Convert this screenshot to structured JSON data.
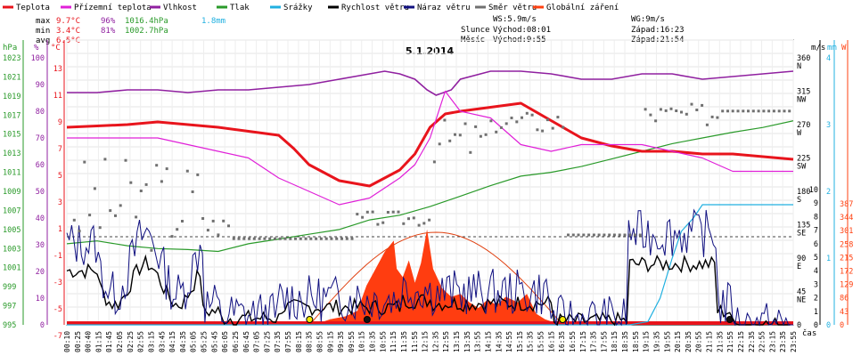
{
  "legend": [
    {
      "label": "Teplota",
      "color": "#e8141c"
    },
    {
      "label": "Přízemní teplota",
      "color": "#e020d8"
    },
    {
      "label": "Vlhkost",
      "color": "#9020a0"
    },
    {
      "label": "Tlak",
      "color": "#2a9a2a"
    },
    {
      "label": "Srážky",
      "color": "#20b0e0"
    },
    {
      "label": "Rychlost větru",
      "color": "#000000"
    },
    {
      "label": "Náraz větru",
      "color": "#101080"
    },
    {
      "label": "Směr větru",
      "color": "#707070"
    },
    {
      "label": "Globální záření",
      "color": "#ff4010"
    }
  ],
  "stats": {
    "max": {
      "label": "max",
      "temp": "9.7°C",
      "hum": "96%",
      "press": "1016.4hPa",
      "rain": "1.8mm"
    },
    "min": {
      "label": "min",
      "temp": "3.4°C",
      "hum": "81%",
      "press": "1002.7hPa"
    },
    "avg": {
      "label": "avg",
      "temp": "6.5°C"
    }
  },
  "wind_info": {
    "ws": "WS:5.9m/s",
    "wg": "WG:9m/s"
  },
  "sun": {
    "label": "Slunce",
    "rise": "Východ:08:01",
    "set": "Západ:16:23"
  },
  "moon": {
    "label": "Měsíc",
    "rise": "Východ:9:55",
    "set": "Západ:21:54"
  },
  "chart_data": {
    "type": "line",
    "title": "5.1.2014",
    "xlabel": "čas",
    "x_ticks": [
      "00:10",
      "00:25",
      "00:40",
      "01:15",
      "01:45",
      "02:05",
      "02:25",
      "02:55",
      "03:15",
      "03:45",
      "04:15",
      "04:35",
      "05:05",
      "05:25",
      "05:45",
      "06:05",
      "06:25",
      "06:45",
      "07:05",
      "07:25",
      "07:35",
      "07:55",
      "08:15",
      "08:35",
      "08:55",
      "09:15",
      "09:35",
      "09:55",
      "10:15",
      "10:35",
      "10:55",
      "11:15",
      "11:35",
      "11:55",
      "12:15",
      "12:35",
      "12:55",
      "13:15",
      "13:35",
      "13:55",
      "14:15",
      "14:35",
      "14:55",
      "15:15",
      "15:35",
      "15:55",
      "16:15",
      "16:35",
      "16:55",
      "17:15",
      "17:35",
      "17:55",
      "18:15",
      "18:35",
      "18:55",
      "19:15",
      "19:35",
      "19:55",
      "20:15",
      "20:35",
      "20:55",
      "21:15",
      "21:35",
      "21:55",
      "22:15",
      "22:35",
      "22:55",
      "23:15",
      "23:35",
      "23:55"
    ],
    "axes": {
      "pressure": {
        "unit": "hPa",
        "ticks": [
          "1023",
          "1021",
          "1019",
          "1017",
          "1015",
          "1013",
          "1011",
          "1009",
          "1007",
          "1005",
          "1003",
          "1001",
          "999",
          "997",
          "995"
        ]
      },
      "humidity": {
        "unit": "%",
        "ticks": [
          "100",
          "90",
          "80",
          "70",
          "60",
          "50",
          "40",
          "30",
          "20",
          "10",
          "0"
        ]
      },
      "temperature": {
        "unit": "°C",
        "ticks": [
          "13",
          "11",
          "9",
          "7",
          "5",
          "3",
          "1",
          "-1",
          "-3",
          "-5",
          "-7"
        ]
      },
      "wind_dir": {
        "unit": "m/s",
        "ticks": [
          "360",
          "N",
          "315",
          "NW",
          "270",
          "W",
          "225",
          "SW",
          "180",
          "S",
          "135",
          "SE",
          "90",
          "E",
          "45",
          "NE",
          "0"
        ]
      },
      "wind_speed": {
        "unit": "m/s",
        "ticks": [
          "10",
          "9",
          "8",
          "7",
          "6",
          "5",
          "4",
          "3",
          "2",
          "1",
          "0"
        ]
      },
      "rain": {
        "unit": "mm",
        "ticks": [
          "4",
          "3",
          "2",
          "1",
          "0"
        ]
      },
      "radiation": {
        "unit": "W",
        "ticks": [
          "387",
          "344",
          "301",
          "258",
          "215",
          "172",
          "129",
          "86",
          "43",
          "0"
        ]
      }
    },
    "series": [
      {
        "name": "Teplota",
        "unit": "°C",
        "x": [
          0,
          1,
          2,
          3,
          4,
          5,
          6,
          7,
          7.5,
          8,
          9,
          10,
          11,
          11.5,
          12,
          12.5,
          13,
          14,
          15,
          16,
          17,
          18,
          19,
          20,
          21,
          22,
          23,
          24
        ],
        "values": [
          7.8,
          7.9,
          8.0,
          8.2,
          8.0,
          7.8,
          7.5,
          7.2,
          6.2,
          5.0,
          3.8,
          3.4,
          4.6,
          5.8,
          7.8,
          8.8,
          9.0,
          9.3,
          9.6,
          8.3,
          7.0,
          6.4,
          6.0,
          6.0,
          5.8,
          5.8,
          5.6,
          5.4
        ]
      },
      {
        "name": "Přízemní teplota",
        "unit": "°C",
        "x": [
          0,
          1,
          2,
          3,
          4,
          5,
          6,
          7,
          8,
          9,
          10,
          11,
          11.5,
          12,
          12.5,
          13,
          14,
          15,
          16,
          17,
          18,
          19,
          20,
          21,
          22,
          23,
          24
        ],
        "values": [
          7,
          7,
          7,
          7,
          6.5,
          6,
          5.5,
          4,
          3,
          2,
          2.5,
          4,
          5,
          7,
          10.5,
          9,
          8.5,
          6.5,
          6,
          6.5,
          6.5,
          6.5,
          6,
          5.5,
          4.5,
          4.5,
          4.5
        ]
      }
    ]
  }
}
